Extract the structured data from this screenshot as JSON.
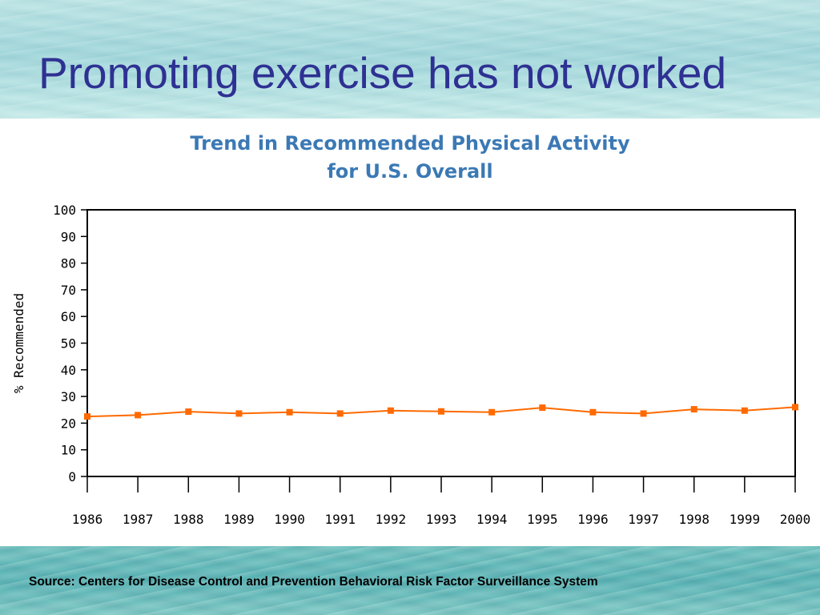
{
  "slide": {
    "title": "Promoting exercise has not worked",
    "source": "Source: Centers for Disease Control and Prevention Behavioral Risk Factor Surveillance System"
  },
  "colors": {
    "title": "#2e3192",
    "chart_title": "#3b79b5",
    "series": "#ff6a00"
  },
  "chart_data": {
    "type": "line",
    "title_lines": [
      "Trend in Recommended Physical Activity",
      "for U.S. Overall"
    ],
    "xlabel": "",
    "ylabel": "% Recommended",
    "ylim": [
      0,
      100
    ],
    "yticks": [
      0,
      10,
      20,
      30,
      40,
      50,
      60,
      70,
      80,
      90,
      100
    ],
    "x": [
      "1986",
      "1987",
      "1988",
      "1989",
      "1990",
      "1991",
      "1992",
      "1993",
      "1994",
      "1995",
      "1996",
      "1997",
      "1998",
      "1999",
      "2000"
    ],
    "series": [
      {
        "values": [
          22.5,
          23.0,
          24.3,
          23.6,
          24.1,
          23.6,
          24.7,
          24.4,
          24.1,
          25.8,
          24.1,
          23.6,
          25.2,
          24.7,
          26.0
        ]
      }
    ],
    "grid": false,
    "legend": "none"
  }
}
